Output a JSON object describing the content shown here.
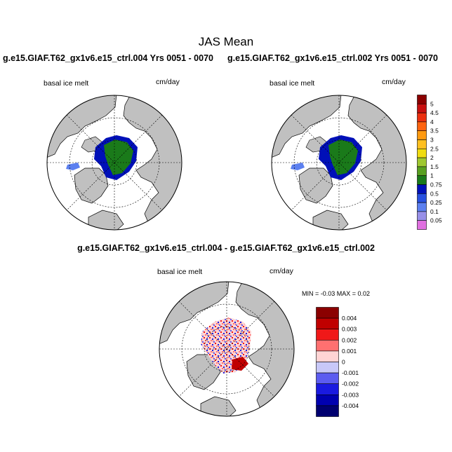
{
  "title": "JAS Mean",
  "panels": [
    {
      "case_title": "g.e15.GIAF.T62_gx1v6.e15_ctrl.004  Yrs 0051 - 0070",
      "variable_label": "basal ice melt",
      "units": "cm/day"
    },
    {
      "case_title": "g.e15.GIAF.T62_gx1v6.e15_ctrl.002  Yrs 0051 - 0070",
      "variable_label": "basal ice melt",
      "units": "cm/day"
    }
  ],
  "difference_panel": {
    "title": "g.e15.GIAF.T62_gx1v6.e15_ctrl.004 - g.e15.GIAF.T62_gx1v6.e15_ctrl.002",
    "variable_label": "basal ice melt",
    "units": "cm/day",
    "min_max_text": "MIN = -0.03 MAX =  0.02"
  },
  "colorbar_main": {
    "labels": [
      "5",
      "4.5",
      "4",
      "3.5",
      "3",
      "2.5",
      "2",
      "1.5",
      "1",
      "0.75",
      "0.5",
      "0.25",
      "0.1",
      "0.05"
    ],
    "colors": [
      "#8b0000",
      "#c81010",
      "#ec3010",
      "#ff6410",
      "#ff9a10",
      "#ffc020",
      "#f0dc10",
      "#9fc830",
      "#58a020",
      "#1a7a1a",
      "#0010b8",
      "#2850e0",
      "#5c80f0",
      "#9890e8",
      "#e070e0"
    ]
  },
  "colorbar_diff": {
    "labels": [
      "0.004",
      "0.003",
      "0.002",
      "0.001",
      "0",
      "-0.001",
      "-0.002",
      "-0.003",
      "-0.004"
    ],
    "colors": [
      "#8b0000",
      "#c00000",
      "#f01818",
      "#ff7070",
      "#ffd4d4",
      "#c8c8f8",
      "#5c5cf0",
      "#1a1ae0",
      "#0000b0",
      "#000070"
    ]
  },
  "map_colors": {
    "land": "#c0c0c0",
    "ocean": "#ffffff",
    "melt_high": "#1a7a1a",
    "melt_mid": "#0010b8",
    "melt_low": "#5c80f0"
  }
}
